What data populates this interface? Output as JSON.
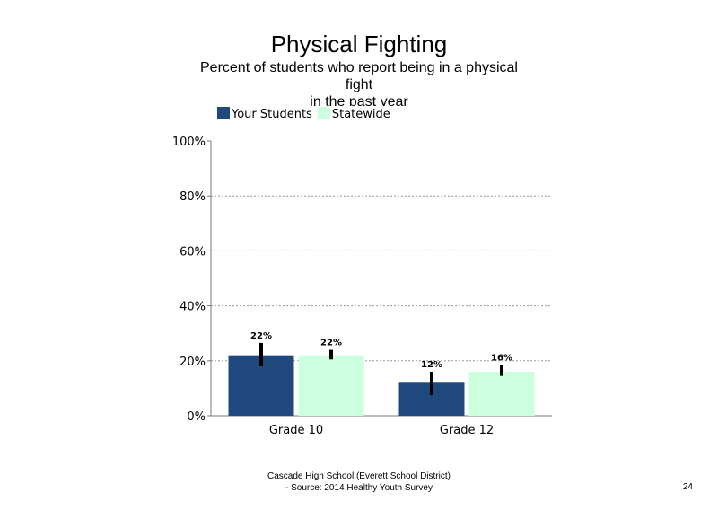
{
  "page_number": "24",
  "footer": {
    "line1": "Cascade High School (Everett School District)",
    "line2": "- Source: 2014 Healthy  Youth Survey"
  },
  "chart_data": {
    "type": "bar",
    "title": "Physical Fighting",
    "subtitle": [
      "Percent of students  who report being in a physical",
      "fight",
      "in the past year"
    ],
    "categories": [
      "Grade 10",
      "Grade 12"
    ],
    "series": [
      {
        "name": "Your Students",
        "color": "#1f497d",
        "values": [
          22,
          12
        ],
        "labels": [
          "22%",
          "12%"
        ],
        "error": [
          [
            18,
            26.5
          ],
          [
            7.5,
            16
          ]
        ]
      },
      {
        "name": "Statewide",
        "color": "#ccffdd",
        "values": [
          22,
          16
        ],
        "labels": [
          "22%",
          "16%"
        ],
        "error": [
          [
            20.5,
            24
          ],
          [
            14.5,
            18.5
          ]
        ]
      }
    ],
    "yticks": [
      "0%",
      "20%",
      "40%",
      "60%",
      "80%",
      "100%"
    ],
    "ylim": [
      0,
      100
    ],
    "grid": true,
    "legend": "top-left"
  }
}
